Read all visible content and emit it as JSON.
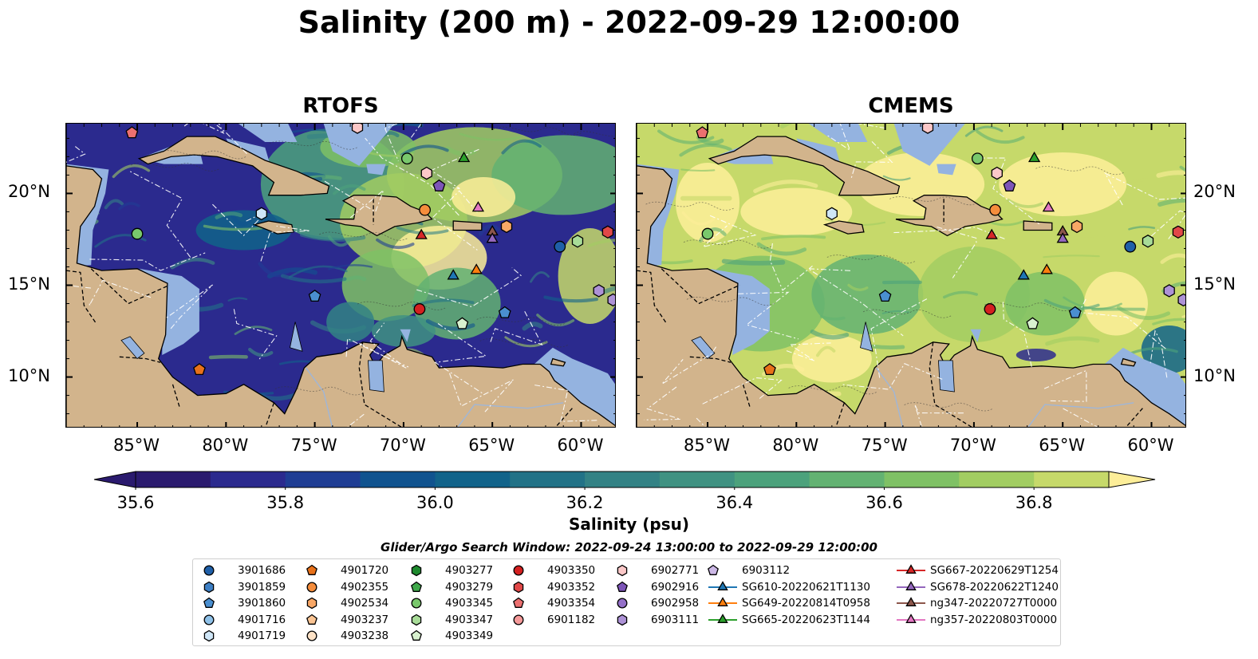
{
  "title": "Salinity (200 m) - 2022-09-29 12:00:00",
  "panels": [
    {
      "title": "RTOFS",
      "model": "rtofs"
    },
    {
      "title": "CMEMS",
      "model": "cmems"
    }
  ],
  "map": {
    "lon_range": [
      -89,
      -58
    ],
    "lat_range": [
      7.2,
      23.8
    ],
    "lon_ticks": [
      "85°W",
      "80°W",
      "75°W",
      "70°W",
      "65°W",
      "60°W"
    ],
    "lon_tick_values": [
      -85,
      -80,
      -75,
      -70,
      -65,
      -60
    ],
    "lat_ticks": [
      "20°N",
      "15°N",
      "10°N"
    ],
    "lat_tick_values": [
      20,
      15,
      10
    ],
    "colors": {
      "land": "#d2b48c",
      "shallow": "#94b3e0",
      "coast": "#000000",
      "border": "#000000"
    }
  },
  "colorbar": {
    "label": "Salinity (psu)",
    "ticks": [
      "35.6",
      "35.8",
      "36.0",
      "36.2",
      "36.4",
      "36.6",
      "36.8"
    ],
    "tick_values": [
      35.6,
      35.8,
      36.0,
      36.2,
      36.4,
      36.6,
      36.8
    ],
    "range": [
      35.6,
      36.9
    ],
    "colormap": "haline",
    "colors": [
      "#2a1a6e",
      "#2b2a8e",
      "#1f3d94",
      "#10538f",
      "#11638a",
      "#227287",
      "#338285",
      "#409282",
      "#4ca27c",
      "#63b272",
      "#7fc165",
      "#a2cd62",
      "#c6d96a",
      "#fdee99"
    ]
  },
  "search_window": "Glider/Argo Search Window: 2022-09-24 13:00:00 to 2022-09-29 12:00:00",
  "legend": {
    "columns": [
      [
        {
          "label": "3901686",
          "marker": "circle",
          "color": "#1f5fa8"
        },
        {
          "label": "3901859",
          "marker": "hexagon",
          "color": "#3d7fc4"
        },
        {
          "label": "3901860",
          "marker": "pentagon",
          "color": "#4a8fd0"
        },
        {
          "label": "4901716",
          "marker": "circle",
          "color": "#8fc1e8"
        },
        {
          "label": "4901719",
          "marker": "hexagon",
          "color": "#cfe6f7"
        }
      ],
      [
        {
          "label": "4901720",
          "marker": "pentagon",
          "color": "#e8711a"
        },
        {
          "label": "4902355",
          "marker": "circle",
          "color": "#f58d3c"
        },
        {
          "label": "4902534",
          "marker": "hexagon",
          "color": "#f8a766"
        },
        {
          "label": "4903237",
          "marker": "pentagon",
          "color": "#fbc594"
        },
        {
          "label": "4903238",
          "marker": "circle",
          "color": "#fde2c6"
        }
      ],
      [
        {
          "label": "4903277",
          "marker": "hexagon",
          "color": "#1e8a2e"
        },
        {
          "label": "4903279",
          "marker": "pentagon",
          "color": "#3fa84a"
        },
        {
          "label": "4903345",
          "marker": "circle",
          "color": "#79c86c"
        },
        {
          "label": "4903347",
          "marker": "hexagon",
          "color": "#a8dc98"
        },
        {
          "label": "4903349",
          "marker": "pentagon",
          "color": "#d8f1cf"
        }
      ],
      [
        {
          "label": "4903350",
          "marker": "circle",
          "color": "#d42020"
        },
        {
          "label": "4903352",
          "marker": "hexagon",
          "color": "#e14848"
        },
        {
          "label": "4903354",
          "marker": "pentagon",
          "color": "#ec7070"
        },
        {
          "label": "6901182",
          "marker": "circle",
          "color": "#f59a9a"
        }
      ],
      [
        {
          "label": "6902771",
          "marker": "hexagon",
          "color": "#fbc8c8"
        },
        {
          "label": "6902916",
          "marker": "pentagon",
          "color": "#7d55b8"
        },
        {
          "label": "6902958",
          "marker": "circle",
          "color": "#9470c8"
        },
        {
          "label": "6903111",
          "marker": "hexagon",
          "color": "#ad92d6"
        }
      ],
      [
        {
          "label": "6903112",
          "marker": "pentagon",
          "color": "#ccb8e6"
        },
        {
          "label": "SG610-20220621T1130",
          "marker": "triangle",
          "color": "#1f77b4",
          "line": true
        },
        {
          "label": "SG649-20220814T0958",
          "marker": "triangle",
          "color": "#ff7f0e",
          "line": true
        },
        {
          "label": "SG665-20220623T1144",
          "marker": "triangle",
          "color": "#2ca02c",
          "line": true
        }
      ],
      [
        {
          "label": "SG667-20220629T1254",
          "marker": "triangle",
          "color": "#d62728",
          "line": true
        },
        {
          "label": "SG678-20220622T1240",
          "marker": "triangle",
          "color": "#9467bd",
          "line": true
        },
        {
          "label": "ng347-20220727T0000",
          "marker": "triangle",
          "color": "#8c564b",
          "line": true
        },
        {
          "label": "ng357-20220803T0000",
          "marker": "triangle",
          "color": "#e377c2",
          "line": true
        }
      ]
    ]
  },
  "platforms": [
    {
      "id": "4903354",
      "lon": -85.3,
      "lat": 23.3
    },
    {
      "id": "6902771",
      "lon": -72.6,
      "lat": 23.6
    },
    {
      "id": "4903345",
      "lon": -69.8,
      "lat": 21.9
    },
    {
      "id": "SG665-20220623T1144",
      "lon": -66.6,
      "lat": 21.9
    },
    {
      "id": "6902771",
      "lon": -68.7,
      "lat": 21.1
    },
    {
      "id": "6902916",
      "lon": -68.0,
      "lat": 20.4
    },
    {
      "id": "4901719",
      "lon": -78.0,
      "lat": 18.9
    },
    {
      "id": "4902355",
      "lon": -68.8,
      "lat": 19.1
    },
    {
      "id": "ng357-20220803T0000",
      "lon": -65.8,
      "lat": 19.2
    },
    {
      "id": "4903345",
      "lon": -85.0,
      "lat": 17.8
    },
    {
      "id": "SG667-20220629T1254",
      "lon": -69.0,
      "lat": 17.7
    },
    {
      "id": "ng347-20220727T0000",
      "lon": -65.0,
      "lat": 17.9
    },
    {
      "id": "SG678-20220622T1240",
      "lon": -65.0,
      "lat": 17.5
    },
    {
      "id": "4902534",
      "lon": -64.2,
      "lat": 18.2
    },
    {
      "id": "3901686",
      "lon": -61.2,
      "lat": 17.1
    },
    {
      "id": "4903347",
      "lon": -60.2,
      "lat": 17.4
    },
    {
      "id": "4903352",
      "lon": -58.5,
      "lat": 17.9
    },
    {
      "id": "SG610-20220621T1130",
      "lon": -67.2,
      "lat": 15.5
    },
    {
      "id": "SG649-20220814T0958",
      "lon": -65.9,
      "lat": 15.8
    },
    {
      "id": "3901860",
      "lon": -75.0,
      "lat": 14.4
    },
    {
      "id": "4903350",
      "lon": -69.1,
      "lat": 13.7
    },
    {
      "id": "4903349",
      "lon": -66.7,
      "lat": 12.9
    },
    {
      "id": "3901860",
      "lon": -64.3,
      "lat": 13.5
    },
    {
      "id": "6903111",
      "lon": -59.0,
      "lat": 14.7
    },
    {
      "id": "6903111",
      "lon": -58.2,
      "lat": 14.2
    },
    {
      "id": "4901720",
      "lon": -81.5,
      "lat": 10.4
    }
  ]
}
